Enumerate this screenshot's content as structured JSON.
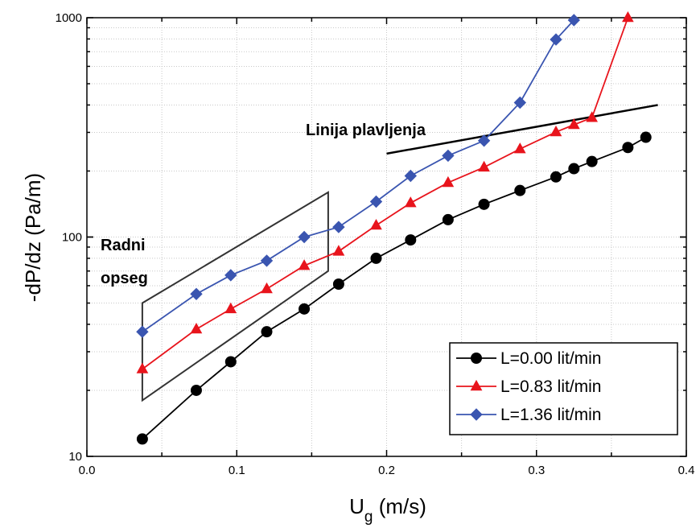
{
  "chart_data": {
    "type": "line",
    "xlabel": "U",
    "xlabel_subscript": "g",
    "xlabel_unit": " (m/s)",
    "ylabel": "-dP/dz (Pa/m)",
    "xlim": [
      0.0,
      0.4
    ],
    "ylim": [
      10,
      1000
    ],
    "yscale": "log",
    "x_ticks": [
      0.0,
      0.1,
      0.2,
      0.3,
      0.4
    ],
    "x_tick_labels": [
      "0.0",
      "0.1",
      "0.2",
      "0.3",
      "0.4"
    ],
    "y_ticks": [
      10,
      100,
      1000
    ],
    "y_tick_labels": [
      "10",
      "100",
      "1000"
    ],
    "grid": true,
    "legend_position": "bottom-right",
    "series": [
      {
        "name": "L=0.00 lit/min",
        "color": "#000000",
        "marker": "circle",
        "x": [
          0.037,
          0.073,
          0.096,
          0.12,
          0.145,
          0.168,
          0.193,
          0.216,
          0.241,
          0.265,
          0.289,
          0.313,
          0.325,
          0.337,
          0.361,
          0.373
        ],
        "y": [
          12,
          20,
          27,
          37,
          47,
          61,
          80,
          97,
          120,
          141,
          163,
          188,
          205,
          221,
          256,
          285
        ]
      },
      {
        "name": "L=0.83 lit/min",
        "color": "#e8141c",
        "marker": "triangle",
        "x": [
          0.037,
          0.073,
          0.096,
          0.12,
          0.145,
          0.168,
          0.193,
          0.216,
          0.241,
          0.265,
          0.289,
          0.313,
          0.325,
          0.337,
          0.361
        ],
        "y": [
          25,
          38,
          47,
          58,
          74,
          86,
          113,
          143,
          177,
          208,
          252,
          301,
          325,
          350,
          1000
        ]
      },
      {
        "name": "L=1.36 lit/min",
        "color": "#3a55b0",
        "marker": "diamond",
        "x": [
          0.037,
          0.073,
          0.096,
          0.12,
          0.145,
          0.168,
          0.193,
          0.216,
          0.241,
          0.265,
          0.289,
          0.313,
          0.325
        ],
        "y": [
          37,
          55,
          67,
          78,
          100,
          111,
          145,
          190,
          235,
          275,
          410,
          795,
          975
        ]
      }
    ],
    "annotations": [
      {
        "text": "Linija plavljenja"
      },
      {
        "text": "Radni"
      },
      {
        "text": "opseg"
      }
    ],
    "flooding_line": {
      "x": [
        0.2,
        0.381
      ],
      "y": [
        240,
        400
      ]
    },
    "operating_region": {
      "x": [
        0.037,
        0.161,
        0.161,
        0.037
      ],
      "y": [
        18,
        70,
        160,
        50
      ]
    }
  }
}
